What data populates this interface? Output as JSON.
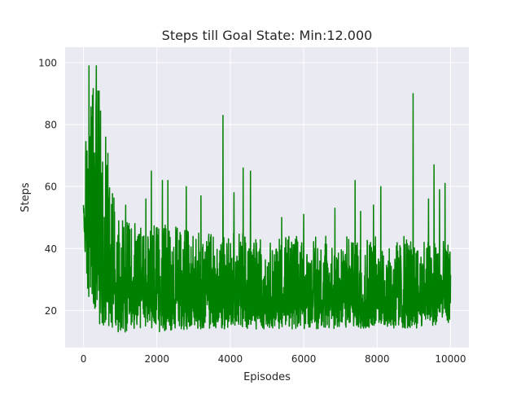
{
  "chart_data": {
    "type": "line",
    "title": "Steps till Goal State: Min:12.000",
    "xlabel": "Episodes",
    "ylabel": "Steps",
    "xlim": [
      -500,
      10500
    ],
    "ylim": [
      8,
      105
    ],
    "grid": true,
    "xticks": [
      0,
      2000,
      4000,
      6000,
      8000,
      10000
    ],
    "yticks": [
      20,
      40,
      60,
      80,
      100
    ],
    "xtick_labels": [
      "0",
      "2000",
      "4000",
      "6000",
      "8000",
      "10000"
    ],
    "ytick_labels": [
      "20",
      "40",
      "60",
      "80",
      "100"
    ],
    "series": [
      {
        "color": "#008000",
        "episodes": 10000,
        "noise_envelope": {
          "x": [
            0,
            100,
            200,
            300,
            400,
            500,
            600,
            700,
            800,
            900,
            1000,
            1500,
            2000,
            3000,
            4000,
            5000,
            6000,
            7000,
            8000,
            9000,
            10000
          ],
          "low": [
            48,
            25,
            20,
            17,
            16,
            15,
            15,
            15,
            14,
            13,
            13,
            13,
            13,
            14,
            14,
            14,
            14,
            14,
            14,
            14,
            16
          ],
          "high": [
            55,
            88,
            96,
            97,
            95,
            90,
            85,
            78,
            65,
            55,
            50,
            48,
            48,
            46,
            46,
            44,
            44,
            44,
            44,
            44,
            42
          ]
        },
        "spikes": [
          {
            "x": 150,
            "y": 99
          },
          {
            "x": 350,
            "y": 99
          },
          {
            "x": 1150,
            "y": 54
          },
          {
            "x": 1700,
            "y": 56
          },
          {
            "x": 1850,
            "y": 65
          },
          {
            "x": 2150,
            "y": 62
          },
          {
            "x": 2300,
            "y": 62
          },
          {
            "x": 2800,
            "y": 60
          },
          {
            "x": 3200,
            "y": 57
          },
          {
            "x": 3800,
            "y": 83
          },
          {
            "x": 4100,
            "y": 58
          },
          {
            "x": 4350,
            "y": 66
          },
          {
            "x": 4550,
            "y": 65
          },
          {
            "x": 5400,
            "y": 50
          },
          {
            "x": 6000,
            "y": 51
          },
          {
            "x": 6850,
            "y": 53
          },
          {
            "x": 7400,
            "y": 62
          },
          {
            "x": 7550,
            "y": 52
          },
          {
            "x": 7900,
            "y": 54
          },
          {
            "x": 8100,
            "y": 60
          },
          {
            "x": 8980,
            "y": 90
          },
          {
            "x": 9400,
            "y": 56
          },
          {
            "x": 9550,
            "y": 67
          },
          {
            "x": 9700,
            "y": 59
          },
          {
            "x": 9850,
            "y": 61
          }
        ]
      }
    ]
  }
}
